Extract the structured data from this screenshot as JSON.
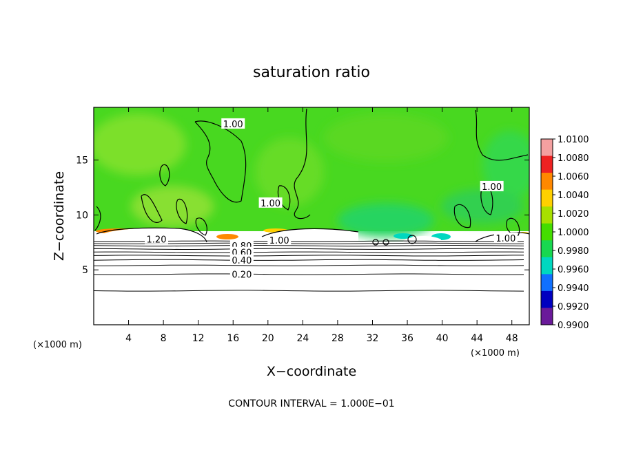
{
  "chart_data": {
    "type": "heatmap",
    "title": "saturation ratio",
    "xlabel": "X−coordinate",
    "ylabel": "Z−coordinate",
    "x_unit": "(×1000 m)",
    "y_unit": "(×1000 m)",
    "xlim": [
      0,
      50
    ],
    "ylim": [
      0,
      19.8
    ],
    "x_ticks": [
      4,
      8,
      12,
      16,
      20,
      24,
      28,
      32,
      36,
      40,
      44,
      48
    ],
    "y_ticks": [
      5,
      10,
      15
    ],
    "grid": false,
    "colorbar": {
      "placement": "right",
      "labels": [
        "1.0100",
        "1.0080",
        "1.0060",
        "1.0040",
        "1.0020",
        "1.0000",
        "0.9980",
        "0.9960",
        "0.9940",
        "0.9920",
        "0.9900"
      ],
      "colors": [
        "#f4a0a0",
        "#ee2222",
        "#ff8800",
        "#ffd000",
        "#a8e000",
        "#44dd00",
        "#18d850",
        "#00d8c0",
        "#1070ff",
        "#0000c0",
        "#6a1a9a"
      ]
    },
    "contour_interval_note": "CONTOUR INTERVAL = 1.000E−01",
    "contour_labels": [
      {
        "text": "1.00",
        "x": 16,
        "z": 18.3
      },
      {
        "text": "1.00",
        "x": 20.3,
        "z": 11.1
      },
      {
        "text": "1.00",
        "x": 45.7,
        "z": 12.6
      },
      {
        "text": "1.00",
        "x": 21.3,
        "z": 7.7
      },
      {
        "text": "1.00",
        "x": 47.3,
        "z": 7.9
      },
      {
        "text": "1.20",
        "x": 7.2,
        "z": 7.8
      },
      {
        "text": "0.80",
        "x": 17.0,
        "z": 7.2
      },
      {
        "text": "0.60",
        "x": 17.0,
        "z": 6.6
      },
      {
        "text": "0.40",
        "x": 17.0,
        "z": 5.9
      },
      {
        "text": "0.20",
        "x": 17.0,
        "z": 4.6
      }
    ],
    "stratified_contours_z": [
      3.1,
      4.6,
      5.4,
      5.9,
      6.3,
      6.6,
      6.9,
      7.2,
      7.4,
      7.6
    ]
  }
}
